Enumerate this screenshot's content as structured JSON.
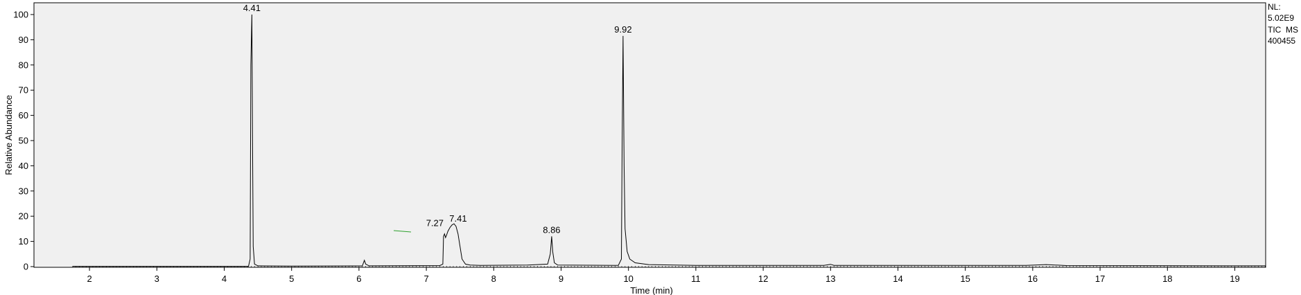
{
  "chart_data": {
    "type": "line",
    "xlabel": "Time (min)",
    "ylabel": "Relative Abundance",
    "xlim": [
      1.75,
      19.95
    ],
    "ylim": [
      0,
      100
    ],
    "x_ticks": [
      "2",
      "3",
      "4",
      "5",
      "6",
      "7",
      "8",
      "9",
      "10",
      "11",
      "12",
      "13",
      "14",
      "15",
      "16",
      "17",
      "18",
      "19"
    ],
    "y_ticks": [
      "0",
      "10",
      "20",
      "30",
      "40",
      "50",
      "60",
      "70",
      "80",
      "90",
      "100"
    ],
    "info": [
      "NL:",
      "5.02E9",
      "TIC  MS",
      "400455"
    ],
    "peaks": [
      {
        "rt": 4.41,
        "label": "4.41",
        "height": 100
      },
      {
        "rt": 7.27,
        "label": "7.27",
        "height": 13
      },
      {
        "rt": 7.41,
        "label": "7.41",
        "height": 16.5
      },
      {
        "rt": 8.86,
        "label": "8.86",
        "height": 12
      },
      {
        "rt": 9.92,
        "label": "9.92",
        "height": 91.5
      }
    ],
    "trace": [
      [
        1.75,
        0.1
      ],
      [
        4.36,
        0.1
      ],
      [
        4.385,
        3
      ],
      [
        4.395,
        80
      ],
      [
        4.41,
        100
      ],
      [
        4.42,
        52
      ],
      [
        4.43,
        8
      ],
      [
        4.45,
        1
      ],
      [
        4.5,
        0.3
      ],
      [
        5.0,
        0.2
      ],
      [
        6.05,
        0.3
      ],
      [
        6.08,
        2.5
      ],
      [
        6.1,
        1
      ],
      [
        6.15,
        0.3
      ],
      [
        7.2,
        0.4
      ],
      [
        7.245,
        1
      ],
      [
        7.255,
        12
      ],
      [
        7.27,
        13
      ],
      [
        7.285,
        11.5
      ],
      [
        7.3,
        12.5
      ],
      [
        7.32,
        14
      ],
      [
        7.35,
        15.5
      ],
      [
        7.38,
        16.5
      ],
      [
        7.41,
        17
      ],
      [
        7.44,
        16
      ],
      [
        7.47,
        13
      ],
      [
        7.5,
        8
      ],
      [
        7.53,
        3
      ],
      [
        7.58,
        1
      ],
      [
        7.65,
        0.6
      ],
      [
        7.8,
        0.5
      ],
      [
        8.5,
        0.6
      ],
      [
        8.8,
        1
      ],
      [
        8.84,
        5
      ],
      [
        8.86,
        12
      ],
      [
        8.875,
        6
      ],
      [
        8.9,
        1.5
      ],
      [
        8.95,
        0.6
      ],
      [
        9.85,
        0.5
      ],
      [
        9.895,
        3
      ],
      [
        9.905,
        45
      ],
      [
        9.92,
        91.5
      ],
      [
        9.935,
        40
      ],
      [
        9.95,
        15
      ],
      [
        9.98,
        6
      ],
      [
        10.02,
        3
      ],
      [
        10.1,
        1.5
      ],
      [
        10.3,
        0.8
      ],
      [
        11.0,
        0.5
      ],
      [
        12.9,
        0.5
      ],
      [
        13.0,
        0.9
      ],
      [
        13.05,
        0.5
      ],
      [
        15.9,
        0.5
      ],
      [
        16.2,
        0.8
      ],
      [
        16.5,
        0.4
      ],
      [
        19.95,
        0.3
      ]
    ]
  }
}
